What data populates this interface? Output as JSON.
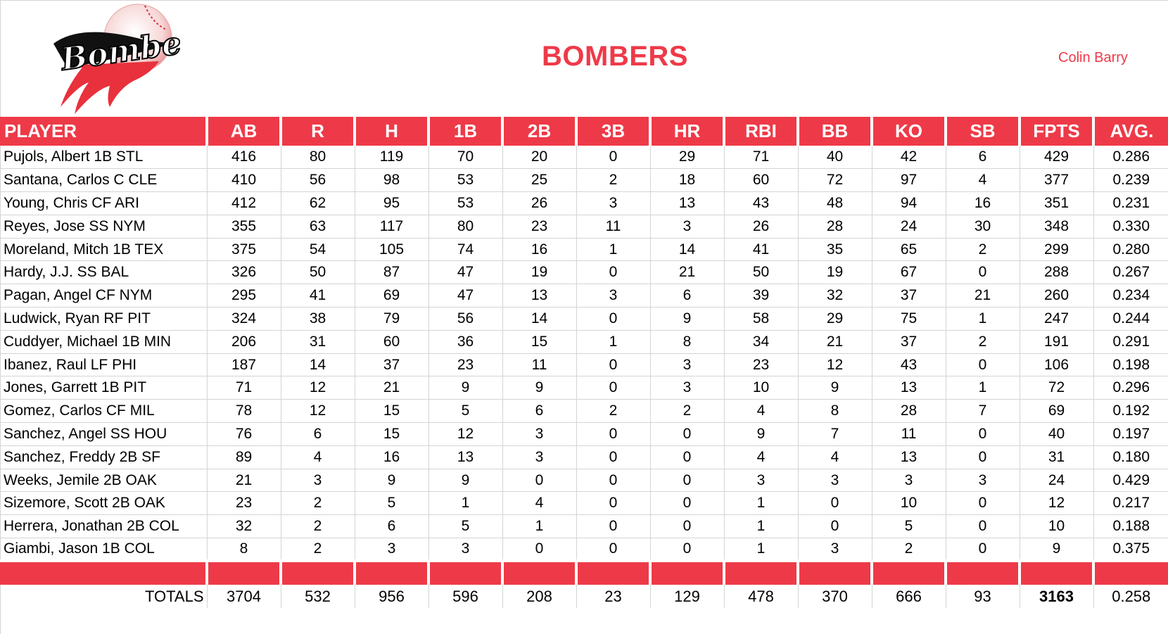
{
  "header": {
    "logo_text": "Bombers",
    "team_title": "BOMBERS",
    "owner": "Colin Barry"
  },
  "colors": {
    "accent": "#ee3a48",
    "grid": "#d4d4d4",
    "text": "#000000"
  },
  "table": {
    "columns": [
      "PLAYER",
      "AB",
      "R",
      "H",
      "1B",
      "2B",
      "3B",
      "HR",
      "RBI",
      "BB",
      "KO",
      "SB",
      "FPTS",
      "AVG."
    ],
    "rows": [
      {
        "player": "Pujols, Albert 1B STL",
        "stats": [
          "416",
          "80",
          "119",
          "70",
          "20",
          "0",
          "29",
          "71",
          "40",
          "42",
          "6",
          "429",
          "0.286"
        ]
      },
      {
        "player": "Santana, Carlos C CLE",
        "stats": [
          "410",
          "56",
          "98",
          "53",
          "25",
          "2",
          "18",
          "60",
          "72",
          "97",
          "4",
          "377",
          "0.239"
        ]
      },
      {
        "player": "Young, Chris CF ARI",
        "stats": [
          "412",
          "62",
          "95",
          "53",
          "26",
          "3",
          "13",
          "43",
          "48",
          "94",
          "16",
          "351",
          "0.231"
        ]
      },
      {
        "player": "Reyes, Jose SS NYM",
        "stats": [
          "355",
          "63",
          "117",
          "80",
          "23",
          "11",
          "3",
          "26",
          "28",
          "24",
          "30",
          "348",
          "0.330"
        ]
      },
      {
        "player": "Moreland, Mitch 1B TEX",
        "stats": [
          "375",
          "54",
          "105",
          "74",
          "16",
          "1",
          "14",
          "41",
          "35",
          "65",
          "2",
          "299",
          "0.280"
        ]
      },
      {
        "player": "Hardy, J.J. SS BAL",
        "stats": [
          "326",
          "50",
          "87",
          "47",
          "19",
          "0",
          "21",
          "50",
          "19",
          "67",
          "0",
          "288",
          "0.267"
        ]
      },
      {
        "player": "Pagan, Angel CF NYM",
        "stats": [
          "295",
          "41",
          "69",
          "47",
          "13",
          "3",
          "6",
          "39",
          "32",
          "37",
          "21",
          "260",
          "0.234"
        ]
      },
      {
        "player": "Ludwick, Ryan RF PIT",
        "stats": [
          "324",
          "38",
          "79",
          "56",
          "14",
          "0",
          "9",
          "58",
          "29",
          "75",
          "1",
          "247",
          "0.244"
        ]
      },
      {
        "player": "Cuddyer, Michael 1B MIN",
        "stats": [
          "206",
          "31",
          "60",
          "36",
          "15",
          "1",
          "8",
          "34",
          "21",
          "37",
          "2",
          "191",
          "0.291"
        ]
      },
      {
        "player": "Ibanez, Raul LF PHI",
        "stats": [
          "187",
          "14",
          "37",
          "23",
          "11",
          "0",
          "3",
          "23",
          "12",
          "43",
          "0",
          "106",
          "0.198"
        ]
      },
      {
        "player": "Jones, Garrett 1B PIT",
        "stats": [
          "71",
          "12",
          "21",
          "9",
          "9",
          "0",
          "3",
          "10",
          "9",
          "13",
          "1",
          "72",
          "0.296"
        ]
      },
      {
        "player": "Gomez, Carlos CF MIL",
        "stats": [
          "78",
          "12",
          "15",
          "5",
          "6",
          "2",
          "2",
          "4",
          "8",
          "28",
          "7",
          "69",
          "0.192"
        ]
      },
      {
        "player": "Sanchez, Angel SS HOU",
        "stats": [
          "76",
          "6",
          "15",
          "12",
          "3",
          "0",
          "0",
          "9",
          "7",
          "11",
          "0",
          "40",
          "0.197"
        ]
      },
      {
        "player": "Sanchez, Freddy 2B SF",
        "stats": [
          "89",
          "4",
          "16",
          "13",
          "3",
          "0",
          "0",
          "4",
          "4",
          "13",
          "0",
          "31",
          "0.180"
        ]
      },
      {
        "player": "Weeks, Jemile 2B OAK",
        "stats": [
          "21",
          "3",
          "9",
          "9",
          "0",
          "0",
          "0",
          "3",
          "3",
          "3",
          "3",
          "24",
          "0.429"
        ]
      },
      {
        "player": "Sizemore, Scott 2B OAK",
        "stats": [
          "23",
          "2",
          "5",
          "1",
          "4",
          "0",
          "0",
          "1",
          "0",
          "10",
          "0",
          "12",
          "0.217"
        ]
      },
      {
        "player": "Herrera, Jonathan 2B COL",
        "stats": [
          "32",
          "2",
          "6",
          "5",
          "1",
          "0",
          "0",
          "1",
          "0",
          "5",
          "0",
          "10",
          "0.188"
        ]
      },
      {
        "player": "Giambi, Jason 1B COL",
        "stats": [
          "8",
          "2",
          "3",
          "3",
          "0",
          "0",
          "0",
          "1",
          "3",
          "2",
          "0",
          "9",
          "0.375"
        ]
      }
    ],
    "totals": {
      "label": "TOTALS",
      "stats": [
        "3704",
        "532",
        "956",
        "596",
        "208",
        "23",
        "129",
        "478",
        "370",
        "666",
        "93",
        "3163",
        "0.258"
      ]
    }
  }
}
